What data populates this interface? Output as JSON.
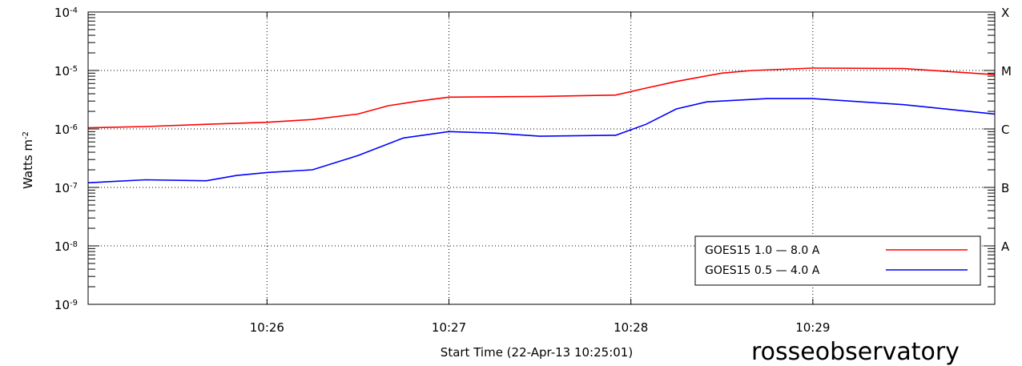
{
  "chart_data": {
    "type": "line",
    "title": "",
    "xlabel": "Start Time (22-Apr-13 10:25:01)",
    "ylabel": "Watts m",
    "ylabel_superscript": "-2",
    "y_scale": "log",
    "ylim": [
      1e-09,
      0.0001
    ],
    "xlim": [
      "10:25:01",
      "10:30:00"
    ],
    "grid": true,
    "legend_position": "bottom-right",
    "y_ticks": [
      {
        "value": 1e-09,
        "base": "10",
        "exp": "-9"
      },
      {
        "value": 1e-08,
        "base": "10",
        "exp": "-8"
      },
      {
        "value": 1e-07,
        "base": "10",
        "exp": "-7"
      },
      {
        "value": 1e-06,
        "base": "10",
        "exp": "-6"
      },
      {
        "value": 1e-05,
        "base": "10",
        "exp": "-5"
      },
      {
        "value": 0.0001,
        "base": "10",
        "exp": "-4"
      }
    ],
    "x_ticks": [
      "10:26",
      "10:27",
      "10:28",
      "10:29"
    ],
    "flare_classes": [
      {
        "label": "A",
        "value": 1e-08
      },
      {
        "label": "B",
        "value": 1e-07
      },
      {
        "label": "C",
        "value": 1e-06
      },
      {
        "label": "M",
        "value": 1e-05
      },
      {
        "label": "X",
        "value": 0.0001
      }
    ],
    "series": [
      {
        "name": "GOES15 1.0 — 8.0 A",
        "color": "#ff0000",
        "points": [
          [
            "10:25:01",
            1.05e-06
          ],
          [
            "10:25:20",
            1.1e-06
          ],
          [
            "10:25:40",
            1.2e-06
          ],
          [
            "10:26:00",
            1.3e-06
          ],
          [
            "10:26:15",
            1.45e-06
          ],
          [
            "10:26:30",
            1.8e-06
          ],
          [
            "10:26:40",
            2.5e-06
          ],
          [
            "10:26:50",
            3e-06
          ],
          [
            "10:27:00",
            3.5e-06
          ],
          [
            "10:27:30",
            3.6e-06
          ],
          [
            "10:27:55",
            3.8e-06
          ],
          [
            "10:28:05",
            5e-06
          ],
          [
            "10:28:15",
            6.5e-06
          ],
          [
            "10:28:30",
            9e-06
          ],
          [
            "10:28:40",
            1e-05
          ],
          [
            "10:29:00",
            1.1e-05
          ],
          [
            "10:29:30",
            1.08e-05
          ],
          [
            "10:30:00",
            8.5e-06
          ]
        ]
      },
      {
        "name": "GOES15 0.5 — 4.0 A",
        "color": "#0000ff",
        "points": [
          [
            "10:25:01",
            1.2e-07
          ],
          [
            "10:25:20",
            1.35e-07
          ],
          [
            "10:25:40",
            1.3e-07
          ],
          [
            "10:25:50",
            1.6e-07
          ],
          [
            "10:26:00",
            1.8e-07
          ],
          [
            "10:26:15",
            2e-07
          ],
          [
            "10:26:30",
            3.5e-07
          ],
          [
            "10:26:45",
            7e-07
          ],
          [
            "10:27:00",
            9e-07
          ],
          [
            "10:27:15",
            8.5e-07
          ],
          [
            "10:27:30",
            7.5e-07
          ],
          [
            "10:27:55",
            7.8e-07
          ],
          [
            "10:28:05",
            1.2e-06
          ],
          [
            "10:28:15",
            2.2e-06
          ],
          [
            "10:28:25",
            2.9e-06
          ],
          [
            "10:28:45",
            3.3e-06
          ],
          [
            "10:29:00",
            3.3e-06
          ],
          [
            "10:29:30",
            2.6e-06
          ],
          [
            "10:30:00",
            1.8e-06
          ]
        ]
      }
    ]
  },
  "watermark": "rosseobservatory"
}
